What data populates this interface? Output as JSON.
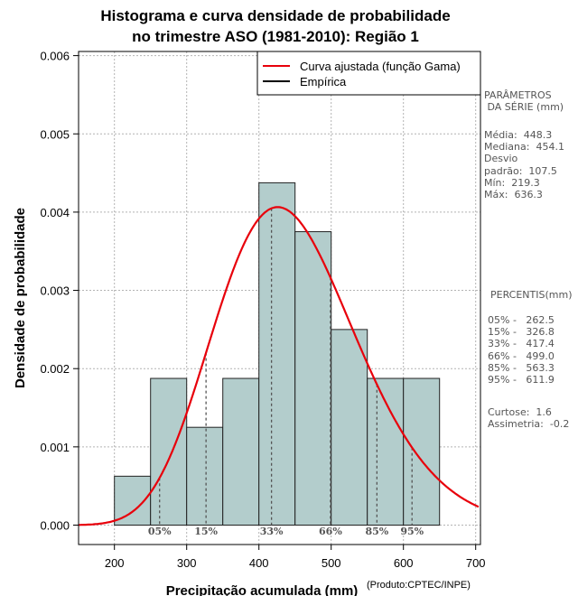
{
  "chart_data": {
    "type": "histogram",
    "title_line1": "Histograma e curva densidade de probabilidade",
    "title_line2": "no trimestre ASO (1981-2010): Região 1",
    "xlabel": "Precipitação acumulada (mm)",
    "ylabel": "Densidade de probabilidade",
    "credit": "(Produto:CPTEC/INPE)",
    "xlim": [
      150,
      705
    ],
    "ylim": [
      0,
      0.0061
    ],
    "x_ticks": [
      200,
      300,
      400,
      500,
      600,
      700
    ],
    "y_ticks": [
      0.0,
      0.001,
      0.002,
      0.003,
      0.004,
      0.005,
      0.006
    ],
    "y_tick_labels": [
      "0.000",
      "0.001",
      "0.002",
      "0.003",
      "0.004",
      "0.005",
      "0.006"
    ],
    "grid": true,
    "bins": [
      {
        "x0": 200,
        "x1": 250,
        "density": 0.000625
      },
      {
        "x0": 250,
        "x1": 300,
        "density": 0.001875
      },
      {
        "x0": 300,
        "x1": 350,
        "density": 0.00125
      },
      {
        "x0": 350,
        "x1": 400,
        "density": 0.001875
      },
      {
        "x0": 400,
        "x1": 450,
        "density": 0.004375
      },
      {
        "x0": 450,
        "x1": 500,
        "density": 0.00375
      },
      {
        "x0": 500,
        "x1": 550,
        "density": 0.0025
      },
      {
        "x0": 550,
        "x1": 600,
        "density": 0.001875
      },
      {
        "x0": 600,
        "x1": 650,
        "density": 0.001875
      }
    ],
    "fit_curve": {
      "name": "Curva ajustada (função Gama)",
      "color": "#e8000b",
      "shape": 20,
      "rate": 0.0446,
      "x_start": 150,
      "x_end": 705
    },
    "legend": [
      {
        "label": "Curva ajustada (função Gama)",
        "color": "#e8000b"
      },
      {
        "label": "Empírica",
        "color": "#000000"
      }
    ],
    "percentile_markers": [
      {
        "label": "05%",
        "value": 262.5
      },
      {
        "label": "15%",
        "value": 326.8
      },
      {
        "label": "33%",
        "value": 417.4
      },
      {
        "label": "66%",
        "value": 499.0
      },
      {
        "label": "85%",
        "value": 563.3
      },
      {
        "label": "95%",
        "value": 611.9
      }
    ],
    "colors": {
      "bar_fill": "#b3cdcc",
      "bar_stroke": "#222222",
      "grid": "#b4b4b4",
      "marker_line": "#555555",
      "marker_label": "#555555"
    }
  },
  "side_panel": {
    "params_title": "PARÂMETROS\n DA SÉRIE (mm)",
    "params_body": "Média:  448.3\nMediana:  454.1\nDesvio\npadrão:  107.5\nMín:  219.3\nMáx:  636.3",
    "percentis_title": "PERCENTIS(mm)",
    "percentis_body": "05% -   262.5\n15% -   326.8\n33% -   417.4\n66% -   499.0\n85% -   563.3\n95% -   611.9",
    "extra_body": "Curtose:  1.6\nAssimetria:  -0.2"
  }
}
